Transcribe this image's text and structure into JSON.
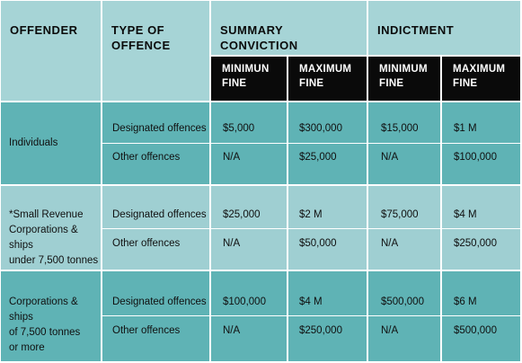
{
  "headers": {
    "offender": "OFFENDER",
    "type_of_offence": [
      "TYPE OF",
      "OFFENCE"
    ],
    "summary_conviction": [
      "SUMMARY",
      "CONVICTION"
    ],
    "indictment": "INDICTMENT",
    "sub": {
      "sc_min": [
        "MINIMUN",
        "FINE"
      ],
      "sc_max": [
        "MAXIMUM",
        "FINE"
      ],
      "ind_min": [
        "MINIMUM",
        "FINE"
      ],
      "ind_max": [
        "MAXIMUM",
        "FINE"
      ]
    }
  },
  "groups": [
    {
      "offender": [
        "Individuals"
      ],
      "rows": [
        {
          "type": "Designated offences",
          "sc_min": "$5,000",
          "sc_max": "$300,000",
          "ind_min": "$15,000",
          "ind_max": "$1 M"
        },
        {
          "type": "Other offences",
          "sc_min": "N/A",
          "sc_max": "$25,000",
          "ind_min": "N/A",
          "ind_max": "$100,000"
        }
      ]
    },
    {
      "offender": [
        "*Small Revenue",
        "Corporations & ships",
        "under 7,500 tonnes"
      ],
      "rows": [
        {
          "type": "Designated offences",
          "sc_min": "$25,000",
          "sc_max": "$2 M",
          "ind_min": "$75,000",
          "ind_max": "$4 M"
        },
        {
          "type": "Other offences",
          "sc_min": "N/A",
          "sc_max": "$50,000",
          "ind_min": "N/A",
          "ind_max": "$250,000"
        }
      ]
    },
    {
      "offender": [
        "Corporations & ships",
        "of 7,500 tonnes",
        "or more"
      ],
      "rows": [
        {
          "type": "Designated offences",
          "sc_min": "$100,000",
          "sc_max": "$4 M",
          "ind_min": "$500,000",
          "ind_max": "$6 M"
        },
        {
          "type": "Other offences",
          "sc_min": "N/A",
          "sc_max": "$250,000",
          "ind_min": "N/A",
          "ind_max": "$500,000"
        }
      ]
    }
  ],
  "colors": {
    "header_bg": "#a6d4d6",
    "subheader_bg": "#0a0a0a",
    "group_dark": "#5fb3b5",
    "group_light": "#9fcfd2",
    "separator": "#ffffff"
  }
}
